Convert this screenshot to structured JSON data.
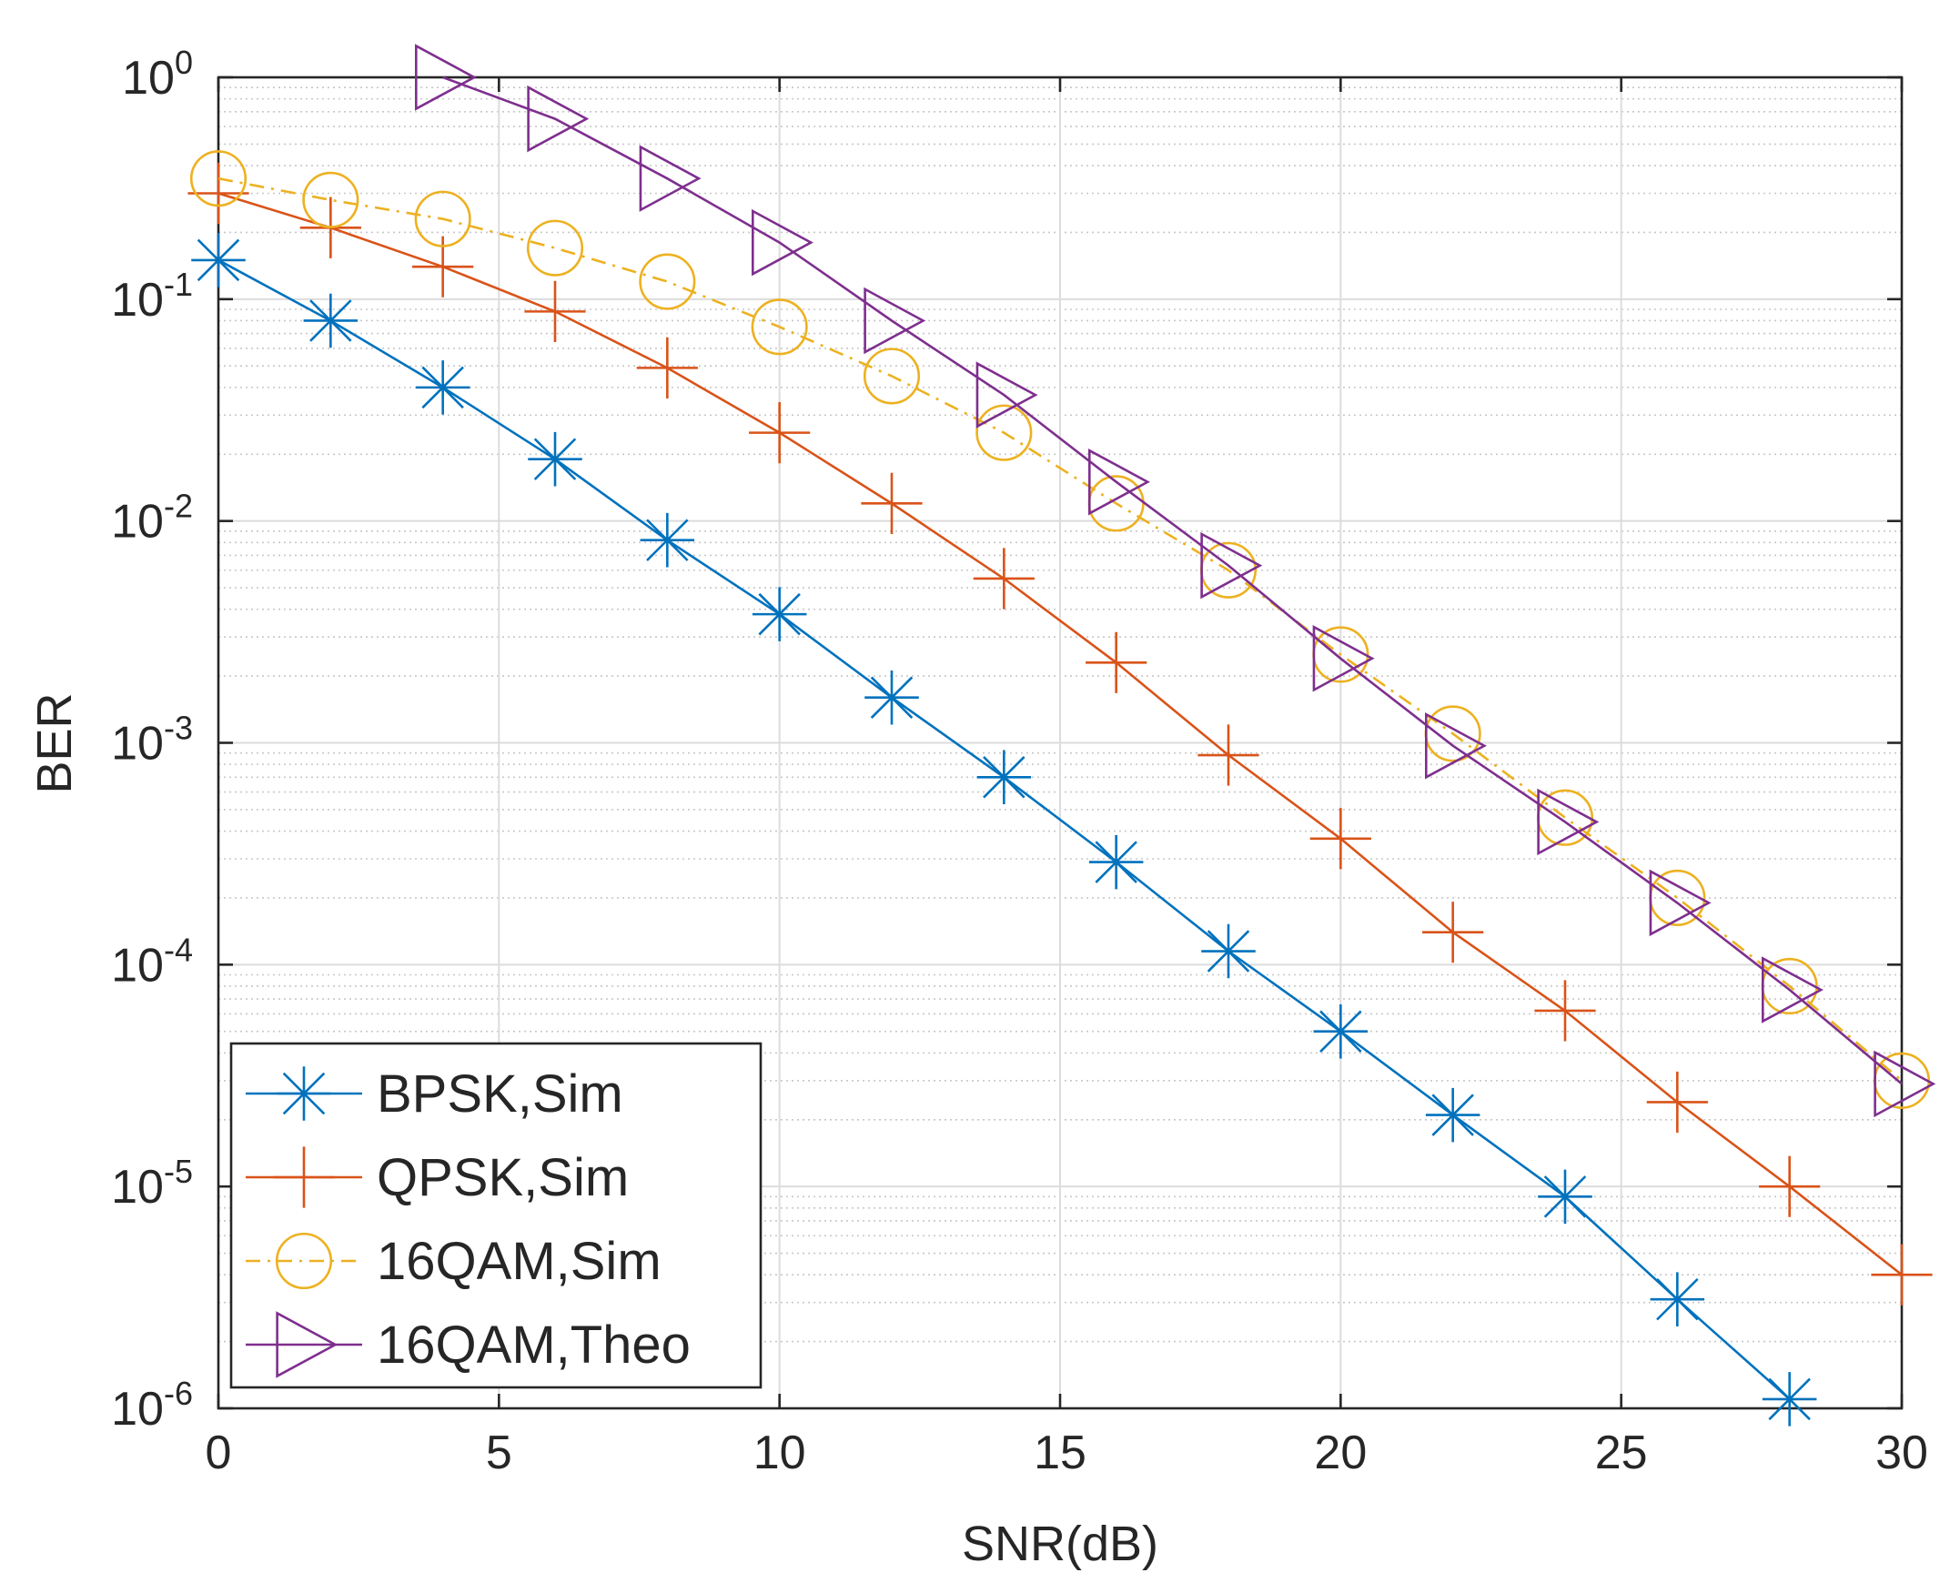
{
  "chart_data": {
    "type": "line",
    "title": "",
    "xlabel": "SNR(dB)",
    "ylabel": "BER",
    "xlim": [
      0,
      30
    ],
    "ylim": [
      1e-06,
      1
    ],
    "yscale": "log",
    "grid": true,
    "minor_grid": true,
    "legend_location": "bottom-left",
    "x_ticks": [
      {
        "value": 0,
        "label": "0"
      },
      {
        "value": 5,
        "label": "5"
      },
      {
        "value": 10,
        "label": "10"
      },
      {
        "value": 15,
        "label": "15"
      },
      {
        "value": 20,
        "label": "20"
      },
      {
        "value": 25,
        "label": "25"
      },
      {
        "value": 30,
        "label": "30"
      }
    ],
    "y_ticks": [
      {
        "exp": 0,
        "base": "10",
        "sup": "0"
      },
      {
        "exp": -1,
        "base": "10",
        "sup": "-1"
      },
      {
        "exp": -2,
        "base": "10",
        "sup": "-2"
      },
      {
        "exp": -3,
        "base": "10",
        "sup": "-3"
      },
      {
        "exp": -4,
        "base": "10",
        "sup": "-4"
      },
      {
        "exp": -5,
        "base": "10",
        "sup": "-5"
      },
      {
        "exp": -6,
        "base": "10",
        "sup": "-6"
      }
    ],
    "series": [
      {
        "name": "BPSK,Sim",
        "color": "#0072BD",
        "marker": "asterisk",
        "dash": "solid",
        "x": [
          0,
          2,
          4,
          6,
          8,
          10,
          12,
          14,
          16,
          18,
          20,
          22,
          24,
          26,
          28
        ],
        "y": [
          0.15,
          0.08,
          0.04,
          0.019,
          0.0082,
          0.0038,
          0.0016,
          0.0007,
          0.00029,
          0.000115,
          5e-05,
          2.1e-05,
          9e-06,
          3.1e-06,
          1.1e-06
        ]
      },
      {
        "name": "QPSK,Sim",
        "color": "#D95319",
        "marker": "plus",
        "dash": "solid",
        "x": [
          0,
          2,
          4,
          6,
          8,
          10,
          12,
          14,
          16,
          18,
          20,
          22,
          24,
          26,
          28,
          30
        ],
        "y": [
          0.3,
          0.21,
          0.14,
          0.088,
          0.049,
          0.025,
          0.012,
          0.0055,
          0.0023,
          0.00088,
          0.00037,
          0.00014,
          6.2e-05,
          2.4e-05,
          1e-05,
          4e-06
        ]
      },
      {
        "name": "16QAM,Sim",
        "color": "#EDB120",
        "marker": "circle",
        "dash": "dashdot",
        "x": [
          0,
          2,
          4,
          6,
          8,
          10,
          12,
          14,
          16,
          18,
          20,
          22,
          24,
          26,
          28,
          30
        ],
        "y": [
          0.35,
          0.28,
          0.23,
          0.17,
          0.12,
          0.075,
          0.045,
          0.025,
          0.012,
          0.006,
          0.0025,
          0.0011,
          0.00046,
          0.0002,
          8e-05,
          3e-05
        ]
      },
      {
        "name": "16QAM,Theo",
        "color": "#7E2F8E",
        "marker": "triangle-right",
        "dash": "solid",
        "x": [
          4,
          6,
          8,
          10,
          12,
          14,
          16,
          18,
          20,
          22,
          24,
          26,
          28,
          30
        ],
        "y": [
          1.0,
          0.65,
          0.35,
          0.18,
          0.08,
          0.037,
          0.015,
          0.0063,
          0.0024,
          0.00097,
          0.00044,
          0.00019,
          7.7e-05,
          2.9e-05
        ]
      }
    ]
  }
}
